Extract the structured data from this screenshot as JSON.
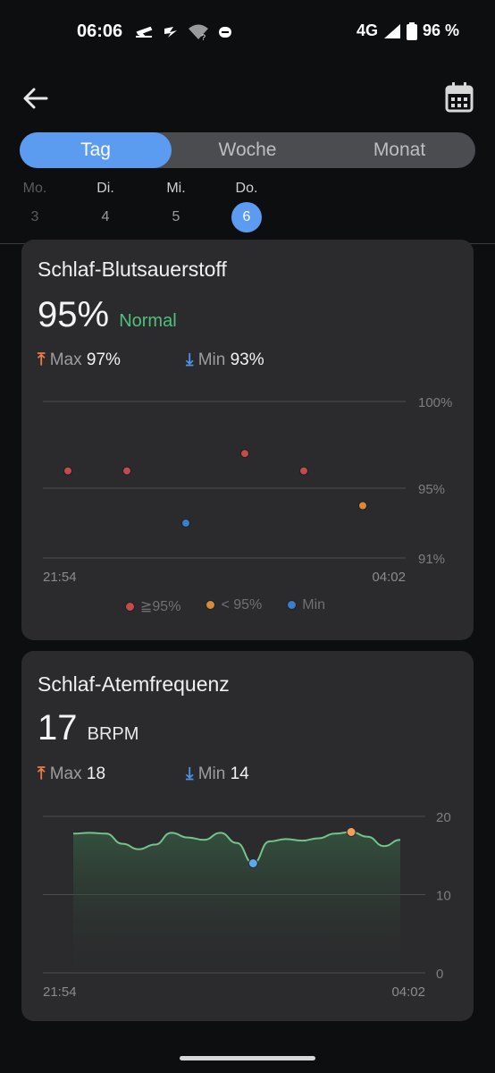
{
  "status": {
    "time": "06:06",
    "network": "4G",
    "battery": "96 %"
  },
  "tabs": [
    {
      "label": "Tag",
      "active": true
    },
    {
      "label": "Woche",
      "active": false
    },
    {
      "label": "Monat",
      "active": false
    }
  ],
  "days": [
    {
      "name": "Mo.",
      "num": "3",
      "state": "muted"
    },
    {
      "name": "Di.",
      "num": "4",
      "state": "normal"
    },
    {
      "name": "Mi.",
      "num": "5",
      "state": "normal"
    },
    {
      "name": "Do.",
      "num": "6",
      "state": "selected"
    }
  ],
  "spo2": {
    "title": "Schlaf-Blutsauerstoff",
    "value": "95%",
    "status": "Normal",
    "max_label": "Max",
    "max_value": "97%",
    "min_label": "Min",
    "min_value": "93%",
    "legend": [
      {
        "label": "≧95%",
        "color": "#c24b4b"
      },
      {
        "label": "< 95%",
        "color": "#d88a3c"
      },
      {
        "label": "Min",
        "color": "#3d7cc9"
      }
    ]
  },
  "resp": {
    "title": "Schlaf-Atemfrequenz",
    "value": "17",
    "unit": "BRPM",
    "max_label": "Max",
    "max_value": "18",
    "min_label": "Min",
    "min_value": "14"
  },
  "chart_data": [
    {
      "type": "scatter",
      "y_ticks": [
        "100%",
        "95%",
        "91%"
      ],
      "x_ticks": [
        "21:54",
        "04:02"
      ],
      "ylim": [
        91,
        100
      ],
      "grid": true,
      "legend_position": "bottom",
      "series": [
        {
          "name": "≧95%",
          "color": "#c24b4b",
          "points": [
            [
              1,
              96
            ],
            [
              2,
              96
            ],
            [
              4,
              97
            ],
            [
              5,
              96
            ]
          ]
        },
        {
          "name": "< 95%",
          "color": "#d88a3c",
          "points": [
            [
              6,
              94
            ]
          ]
        },
        {
          "name": "Min",
          "color": "#3d7cc9",
          "points": [
            [
              3,
              93
            ]
          ]
        }
      ]
    },
    {
      "type": "area",
      "y_ticks": [
        "20",
        "10",
        "0"
      ],
      "x_ticks": [
        "21:54",
        "04:02"
      ],
      "ylim": [
        0,
        20
      ],
      "grid": true,
      "values": [
        17.8,
        17.9,
        17.8,
        16.5,
        15.8,
        16.4,
        17.9,
        17.3,
        17.0,
        17.9,
        16.6,
        14.0,
        16.8,
        17.1,
        16.9,
        17.2,
        17.8,
        18.0,
        17.4,
        16.2,
        17.0
      ],
      "max_index": 17,
      "min_index": 11,
      "line_color": "#73c38c",
      "max_marker_color": "#f0a05a",
      "min_marker_color": "#5aa8f0"
    }
  ]
}
